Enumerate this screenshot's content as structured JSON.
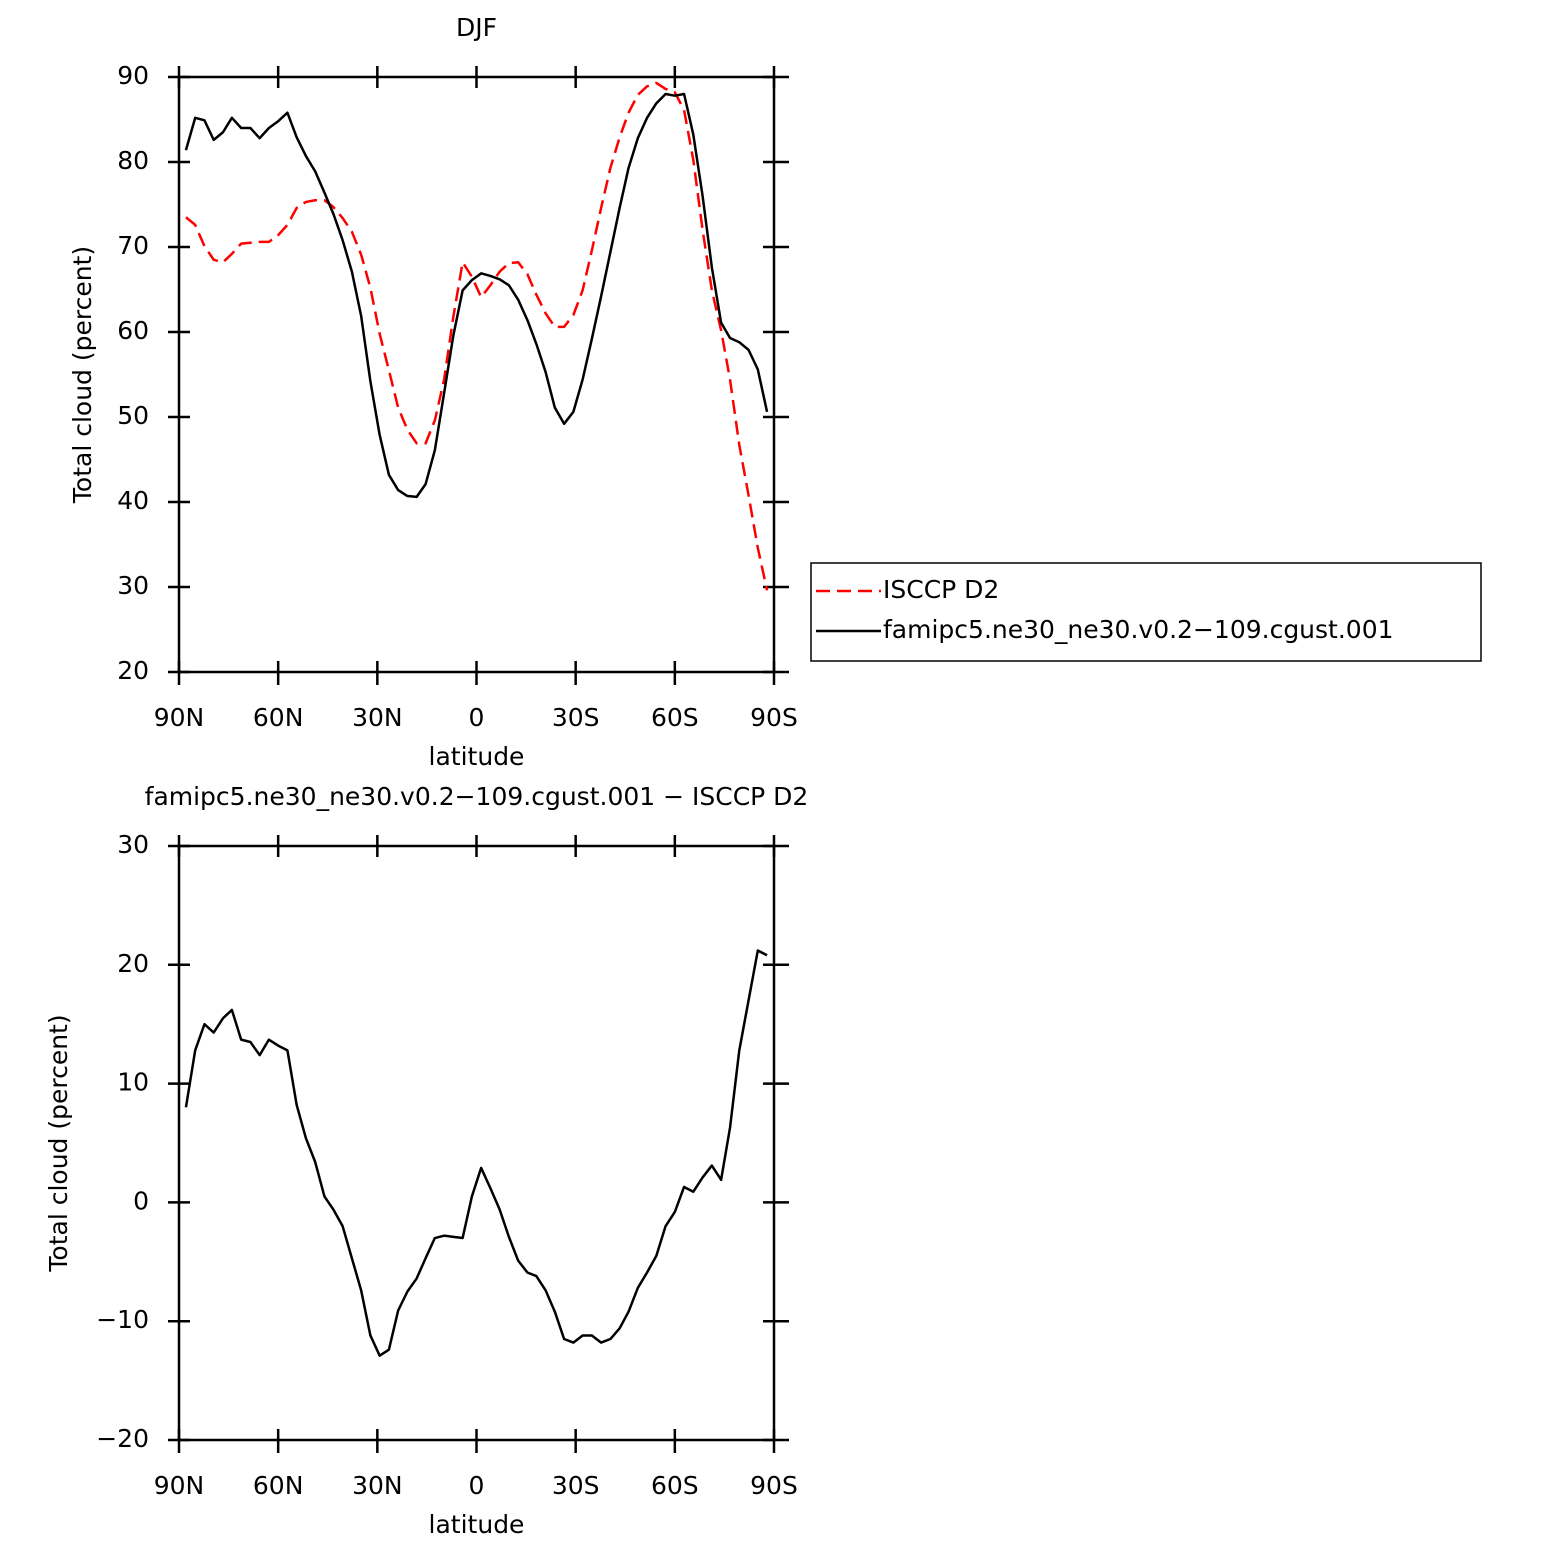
{
  "chart_data": [
    {
      "type": "line",
      "title": "DJF",
      "xlabel": "latitude",
      "ylabel": "Total cloud (percent)",
      "x": [
        87.9,
        85.1,
        82.3,
        79.5,
        76.7,
        74.0,
        71.2,
        68.4,
        65.6,
        62.8,
        60.0,
        57.2,
        54.4,
        51.6,
        48.8,
        46.0,
        43.3,
        40.5,
        37.7,
        34.9,
        32.1,
        29.3,
        26.5,
        23.7,
        20.9,
        18.1,
        15.4,
        12.6,
        9.8,
        7.0,
        4.2,
        1.4,
        -1.4,
        -4.2,
        -7.0,
        -9.8,
        -12.6,
        -15.4,
        -18.1,
        -20.9,
        -23.7,
        -26.5,
        -29.3,
        -32.1,
        -34.9,
        -37.7,
        -40.5,
        -43.3,
        -46.0,
        -48.8,
        -51.6,
        -54.4,
        -57.2,
        -60.0,
        -62.8,
        -65.6,
        -68.4,
        -71.2,
        -74.0,
        -76.7,
        -79.5,
        -82.3,
        -85.1,
        -87.9
      ],
      "xlim": [
        90,
        -90
      ],
      "xticks": [
        {
          "value": 90,
          "label": "90N"
        },
        {
          "value": 60,
          "label": "60N"
        },
        {
          "value": 30,
          "label": "30N"
        },
        0,
        {
          "value": -30,
          "label": "30S"
        },
        {
          "value": -60,
          "label": "60S"
        },
        {
          "value": -90,
          "label": "90S"
        }
      ],
      "ylim": [
        20,
        90
      ],
      "yticks": [
        20,
        30,
        40,
        50,
        60,
        70,
        80,
        90
      ],
      "legend": "right",
      "series": [
        {
          "name": "ISCCP D2",
          "color": "#ff0000",
          "linestyle": "dashed",
          "values": [
            73.5,
            72.6,
            70.1,
            68.5,
            68.2,
            69.2,
            70.4,
            70.5,
            70.6,
            70.6,
            71.4,
            72.6,
            74.6,
            75.3,
            75.5,
            75.5,
            74.7,
            73.4,
            71.8,
            69.1,
            65.2,
            59.8,
            55.5,
            51.1,
            48.5,
            46.9,
            46.9,
            49.6,
            54.4,
            61.8,
            68.2,
            66.5,
            64.1,
            65.5,
            67.1,
            68.1,
            68.2,
            66.8,
            64.4,
            62.2,
            60.6,
            60.6,
            62.0,
            64.9,
            69.6,
            74.6,
            79.3,
            82.9,
            85.8,
            87.9,
            88.9,
            89.3,
            88.6,
            88.2,
            86.1,
            80.2,
            72.0,
            64.9,
            60.2,
            54.4,
            46.7,
            40.8,
            34.6,
            29.6
          ]
        },
        {
          "name": "famipc5.ne30_ne30.v0.2−109.cgust.001",
          "color": "#000000",
          "linestyle": "solid",
          "values": [
            81.4,
            85.2,
            84.9,
            82.6,
            83.5,
            85.2,
            84.0,
            84.0,
            82.8,
            84.0,
            84.8,
            85.8,
            82.9,
            80.7,
            78.9,
            76.4,
            73.9,
            70.8,
            67.1,
            61.9,
            54.2,
            47.9,
            43.2,
            41.4,
            40.7,
            40.6,
            42.1,
            46.1,
            52.8,
            59.6,
            64.9,
            66.1,
            66.9,
            66.6,
            66.2,
            65.5,
            63.8,
            61.4,
            58.6,
            55.3,
            51.1,
            49.2,
            50.6,
            54.4,
            59.2,
            64.2,
            69.4,
            74.6,
            79.3,
            82.8,
            85.2,
            86.9,
            88.0,
            87.8,
            88.0,
            83.2,
            76.0,
            67.6,
            61.1,
            59.3,
            58.8,
            57.9,
            55.6,
            50.6
          ]
        }
      ]
    },
    {
      "type": "line",
      "title": "famipc5.ne30_ne30.v0.2−109.cgust.001 − ISCCP D2",
      "xlabel": "latitude",
      "ylabel": "Total cloud (percent)",
      "x": [
        87.9,
        85.1,
        82.3,
        79.5,
        76.7,
        74.0,
        71.2,
        68.4,
        65.6,
        62.8,
        60.0,
        57.2,
        54.4,
        51.6,
        48.8,
        46.0,
        43.3,
        40.5,
        37.7,
        34.9,
        32.1,
        29.3,
        26.5,
        23.7,
        20.9,
        18.1,
        15.4,
        12.6,
        9.8,
        7.0,
        4.2,
        1.4,
        -1.4,
        -4.2,
        -7.0,
        -9.8,
        -12.6,
        -15.4,
        -18.1,
        -20.9,
        -23.7,
        -26.5,
        -29.3,
        -32.1,
        -34.9,
        -37.7,
        -40.5,
        -43.3,
        -46.0,
        -48.8,
        -51.6,
        -54.4,
        -57.2,
        -60.0,
        -62.8,
        -65.6,
        -68.4,
        -71.2,
        -74.0,
        -76.7,
        -79.5,
        -82.3,
        -85.1,
        -87.9
      ],
      "xlim": [
        90,
        -90
      ],
      "xticks": [
        {
          "value": 90,
          "label": "90N"
        },
        {
          "value": 60,
          "label": "60N"
        },
        {
          "value": 30,
          "label": "30N"
        },
        0,
        {
          "value": -30,
          "label": "30S"
        },
        {
          "value": -60,
          "label": "60S"
        },
        {
          "value": -90,
          "label": "90S"
        }
      ],
      "ylim": [
        -20,
        30
      ],
      "yticks": [
        {
          "value": -20,
          "label": "−20"
        },
        {
          "value": -10,
          "label": "−10"
        },
        0,
        10,
        20,
        30
      ],
      "color": "#000000",
      "values": [
        8.0,
        12.8,
        15.0,
        14.3,
        15.5,
        16.2,
        13.7,
        13.5,
        12.4,
        13.7,
        13.2,
        12.8,
        8.2,
        5.4,
        3.4,
        0.5,
        -0.6,
        -2.0,
        -4.7,
        -7.4,
        -11.2,
        -12.9,
        -12.4,
        -9.1,
        -7.5,
        -6.4,
        -4.7,
        -3.0,
        -2.8,
        -2.9,
        -3.0,
        0.5,
        2.9,
        1.2,
        -0.6,
        -2.9,
        -4.9,
        -5.9,
        -6.2,
        -7.4,
        -9.2,
        -11.5,
        -11.8,
        -11.2,
        -11.2,
        -11.8,
        -11.5,
        -10.6,
        -9.2,
        -7.2,
        -5.9,
        -4.5,
        -2.0,
        -0.8,
        1.3,
        0.9,
        2.1,
        3.1,
        1.9,
        6.3,
        12.8,
        17.0,
        21.2,
        20.8
      ]
    }
  ]
}
